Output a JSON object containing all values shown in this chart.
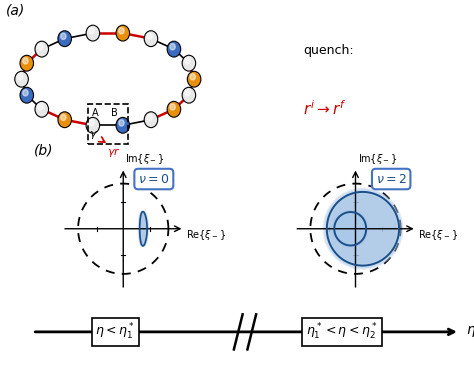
{
  "panel_a_label": "(a)",
  "panel_b_label": "(b)",
  "quench_text": "quench:",
  "quench_formula": "$r^i \\rightarrow r^f$",
  "nu0_label": "$\\nu = 0$",
  "nu2_label": "$\\nu = 2$",
  "dashed_circle_r": 0.85,
  "blue_dark": "#1a4f8a",
  "blue_light": "#aac8e8",
  "box_color": "#4472c4",
  "chain_orange": "#e8900a",
  "chain_blue": "#3a6bbf",
  "chain_white": "#e8e8e8",
  "red_color": "#cc0000"
}
